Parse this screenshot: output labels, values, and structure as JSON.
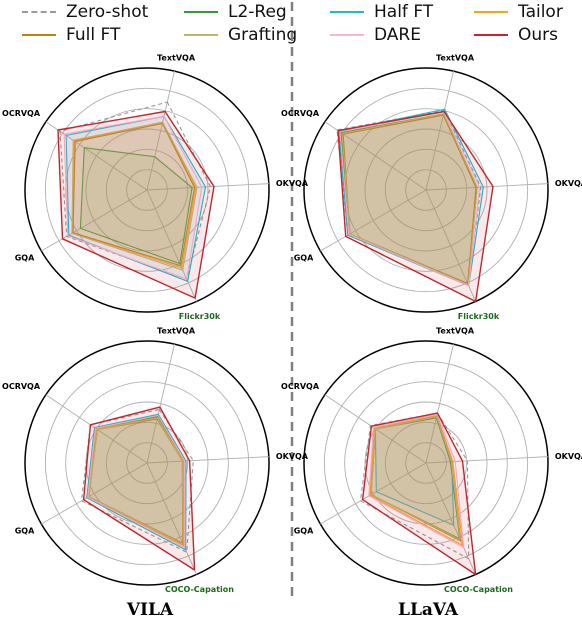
{
  "legend": [
    {
      "name": "Zero-shot",
      "color": "#9a9a9a",
      "dash": true
    },
    {
      "name": "L2-Reg",
      "color": "#2ca02c",
      "dash": false
    },
    {
      "name": "Half FT",
      "color": "#17becf",
      "dash": false
    },
    {
      "name": "Tailor",
      "color": "#ff9f1c",
      "dash": false
    },
    {
      "name": "Full FT",
      "color": "#b8860b",
      "dash": false
    },
    {
      "name": "Grafting",
      "color": "#bdb76b",
      "dash": false
    },
    {
      "name": "DARE",
      "color": "#f7b6d2",
      "dash": false
    },
    {
      "name": "Ours",
      "color": "#c1272d",
      "dash": false
    }
  ],
  "columns": {
    "left": "VILA",
    "right": "LLaVA"
  },
  "chart_data": [
    {
      "type": "radar",
      "model": "VILA",
      "axes": [
        "TextVQA",
        "OKVQA",
        "Flickr30k",
        "GQA",
        "OCRVQA"
      ],
      "highlight_axis": "Flickr30k",
      "rmax": 1.0,
      "series": [
        {
          "name": "Zero-shot",
          "values": [
            0.74,
            0.52,
            0.8,
            0.76,
            0.86
          ]
        },
        {
          "name": "L2-Reg",
          "values": [
            0.28,
            0.37,
            0.66,
            0.63,
            0.62
          ]
        },
        {
          "name": "Half FT",
          "values": [
            0.62,
            0.48,
            0.82,
            0.74,
            0.8
          ]
        },
        {
          "name": "Tailor",
          "values": [
            0.57,
            0.4,
            0.7,
            0.7,
            0.72
          ]
        },
        {
          "name": "Full FT",
          "values": [
            0.56,
            0.39,
            0.68,
            0.7,
            0.71
          ]
        },
        {
          "name": "Grafting",
          "values": [
            0.57,
            0.41,
            0.72,
            0.71,
            0.73
          ]
        },
        {
          "name": "DARE",
          "values": [
            0.62,
            0.45,
            0.8,
            0.75,
            0.82
          ]
        },
        {
          "name": "Ours",
          "values": [
            0.66,
            0.55,
            0.97,
            0.8,
            0.88
          ]
        }
      ]
    },
    {
      "type": "radar",
      "model": "LLaVA",
      "axes": [
        "TextVQA",
        "OKVQA",
        "Flickr30k",
        "GQA",
        "OCRVQA"
      ],
      "highlight_axis": "Flickr30k",
      "rmax": 1.0,
      "series": [
        {
          "name": "Zero-shot",
          "values": [
            0.67,
            0.45,
            0.85,
            0.74,
            0.88
          ]
        },
        {
          "name": "L2-Reg",
          "values": [
            0.64,
            0.42,
            0.84,
            0.72,
            0.84
          ]
        },
        {
          "name": "Half FT",
          "values": [
            0.68,
            0.47,
            0.86,
            0.74,
            0.86
          ]
        },
        {
          "name": "Tailor",
          "values": [
            0.63,
            0.41,
            0.85,
            0.72,
            0.82
          ]
        },
        {
          "name": "Full FT",
          "values": [
            0.63,
            0.41,
            0.84,
            0.72,
            0.82
          ]
        },
        {
          "name": "Grafting",
          "values": [
            0.64,
            0.42,
            0.85,
            0.72,
            0.83
          ]
        },
        {
          "name": "DARE",
          "values": [
            0.66,
            0.44,
            0.86,
            0.73,
            0.85
          ]
        },
        {
          "name": "Ours",
          "values": [
            0.66,
            0.55,
            1.0,
            0.76,
            0.87
          ]
        }
      ]
    },
    {
      "type": "radar",
      "model": "VILA",
      "axes": [
        "TextVQA",
        "OKVQA",
        "COCO-Capation",
        "GQA",
        "OCRVQA"
      ],
      "highlight_axis": "COCO-Capation",
      "rmax": 1.0,
      "series": [
        {
          "name": "Zero-shot",
          "values": [
            0.45,
            0.38,
            0.8,
            0.62,
            0.56
          ]
        },
        {
          "name": "L2-Reg",
          "values": [
            0.39,
            0.3,
            0.74,
            0.55,
            0.5
          ]
        },
        {
          "name": "Half FT",
          "values": [
            0.41,
            0.32,
            0.78,
            0.57,
            0.52
          ]
        },
        {
          "name": "Tailor",
          "values": [
            0.38,
            0.3,
            0.74,
            0.56,
            0.5
          ]
        },
        {
          "name": "Full FT",
          "values": [
            0.37,
            0.29,
            0.72,
            0.55,
            0.49
          ]
        },
        {
          "name": "Grafting",
          "values": [
            0.38,
            0.29,
            0.73,
            0.55,
            0.49
          ]
        },
        {
          "name": "DARE",
          "values": [
            0.4,
            0.31,
            0.76,
            0.56,
            0.51
          ]
        },
        {
          "name": "Ours",
          "values": [
            0.47,
            0.35,
            0.96,
            0.6,
            0.56
          ]
        }
      ]
    },
    {
      "type": "radar",
      "model": "LLaVA",
      "axes": [
        "TextVQA",
        "OKVQA",
        "COCO-Capation",
        "GQA",
        "OCRVQA"
      ],
      "highlight_axis": "COCO-Capation",
      "rmax": 1.0,
      "series": [
        {
          "name": "Zero-shot",
          "values": [
            0.42,
            0.34,
            0.86,
            0.62,
            0.55
          ]
        },
        {
          "name": "L2-Reg",
          "values": [
            0.38,
            0.2,
            0.68,
            0.52,
            0.5
          ]
        },
        {
          "name": "Half FT",
          "values": [
            0.39,
            0.21,
            0.56,
            0.47,
            0.5
          ]
        },
        {
          "name": "Tailor",
          "values": [
            0.4,
            0.22,
            0.74,
            0.53,
            0.51
          ]
        },
        {
          "name": "Full FT",
          "values": [
            0.39,
            0.21,
            0.7,
            0.52,
            0.5
          ]
        },
        {
          "name": "Grafting",
          "values": [
            0.39,
            0.21,
            0.69,
            0.52,
            0.5
          ]
        },
        {
          "name": "DARE",
          "values": [
            0.41,
            0.24,
            0.76,
            0.54,
            0.52
          ]
        },
        {
          "name": "Ours",
          "values": [
            0.42,
            0.3,
            1.0,
            0.6,
            0.54
          ]
        }
      ]
    }
  ]
}
